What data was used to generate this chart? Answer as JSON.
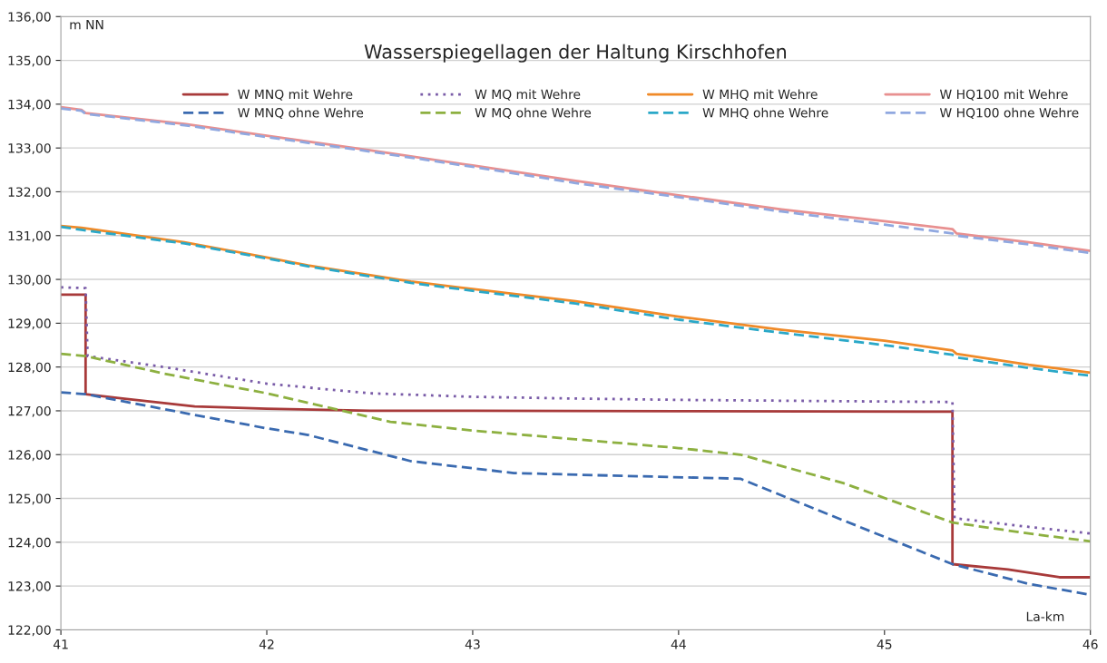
{
  "chart_data": {
    "type": "line",
    "title": "Wasserspiegellagen der Haltung Kirschhofen",
    "xlabel": "La-km",
    "ylabel": "m NN",
    "xlim": [
      41,
      46
    ],
    "xticks": [
      41,
      42,
      43,
      44,
      45,
      46
    ],
    "ylim": [
      122,
      136
    ],
    "yticks": [
      {
        "value": 122,
        "label": "122,00"
      },
      {
        "value": 123,
        "label": "123,00"
      },
      {
        "value": 124,
        "label": "124,00"
      },
      {
        "value": 125,
        "label": "125,00"
      },
      {
        "value": 126,
        "label": "126,00"
      },
      {
        "value": 127,
        "label": "127,00"
      },
      {
        "value": 128,
        "label": "128,00"
      },
      {
        "value": 129,
        "label": "129,00"
      },
      {
        "value": 130,
        "label": "130,00"
      },
      {
        "value": 131,
        "label": "131,00"
      },
      {
        "value": 132,
        "label": "132,00"
      },
      {
        "value": 133,
        "label": "133,00"
      },
      {
        "value": 134,
        "label": "134,00"
      },
      {
        "value": 135,
        "label": "135,00"
      },
      {
        "value": 136,
        "label": "136,00"
      }
    ],
    "grid": "y",
    "legend": "top right",
    "marker": "none",
    "series": [
      {
        "name": "W MNQ mit Wehre",
        "color": "#a83a3a",
        "line_style": "solid",
        "x": [
          41,
          41.12,
          41.12,
          41.3,
          41.65,
          42.0,
          42.5,
          43,
          44,
          45.33,
          45.33,
          45.6,
          45.85,
          46
        ],
        "values": [
          129.65,
          129.65,
          127.38,
          127.28,
          127.1,
          127.05,
          127.0,
          127.0,
          126.99,
          126.98,
          123.5,
          123.38,
          123.2,
          123.2
        ]
      },
      {
        "name": "W MNQ ohne Wehre",
        "color": "#3a6ab0",
        "line_style": "dashed",
        "x": [
          41,
          41.12,
          41.6,
          42.0,
          42.2,
          42.7,
          43.2,
          43.6,
          44.3,
          44.8,
          45.33,
          45.7,
          46
        ],
        "values": [
          127.42,
          127.38,
          126.95,
          126.6,
          126.45,
          125.85,
          125.58,
          125.53,
          125.45,
          124.5,
          123.5,
          123.05,
          122.8
        ]
      },
      {
        "name": "W MQ mit Wehre",
        "color": "#7a5ca8",
        "line_style": "dotted",
        "x": [
          41,
          41.12,
          41.13,
          41.5,
          42,
          42.5,
          43,
          43.5,
          44,
          45.33,
          45.34,
          45.7,
          46
        ],
        "values": [
          129.82,
          129.8,
          128.25,
          128.0,
          127.62,
          127.4,
          127.32,
          127.28,
          127.25,
          127.2,
          124.55,
          124.35,
          124.2
        ]
      },
      {
        "name": "W MQ ohne Wehre",
        "color": "#8db040",
        "line_style": "dashed",
        "x": [
          41,
          41.12,
          41.5,
          42,
          42.6,
          43,
          43.5,
          44.0,
          44.3,
          44.8,
          45.33,
          45.7,
          46
        ],
        "values": [
          128.3,
          128.25,
          127.85,
          127.4,
          126.75,
          126.55,
          126.35,
          126.15,
          126.0,
          125.35,
          124.45,
          124.2,
          124.02
        ]
      },
      {
        "name": "W MHQ mit Wehre",
        "color": "#f08a28",
        "line_style": "solid",
        "x": [
          41,
          41.1,
          41.6,
          42.0,
          42.2,
          42.7,
          43,
          43.5,
          44,
          44.5,
          45.0,
          45.33,
          45.35,
          45.7,
          46
        ],
        "values": [
          131.22,
          131.18,
          130.85,
          130.5,
          130.32,
          129.95,
          129.78,
          129.5,
          129.15,
          128.85,
          128.6,
          128.38,
          128.3,
          128.05,
          127.87
        ]
      },
      {
        "name": "W MHQ ohne Wehre",
        "color": "#2aa8c8",
        "line_style": "dashed",
        "x": [
          41,
          41.1,
          41.6,
          42,
          42.2,
          42.7,
          43,
          43.5,
          44,
          44.5,
          45,
          45.33,
          45.35,
          45.7,
          46
        ],
        "values": [
          131.2,
          131.13,
          130.82,
          130.48,
          130.3,
          129.92,
          129.74,
          129.45,
          129.08,
          128.78,
          128.5,
          128.28,
          128.22,
          127.98,
          127.8
        ]
      },
      {
        "name": "W HQ100 mit Wehre",
        "color": "#e89090",
        "line_style": "solid",
        "x": [
          41,
          41.1,
          41.12,
          41.6,
          42,
          42.5,
          43,
          43.5,
          44,
          44.5,
          45,
          45.33,
          45.35,
          45.7,
          46
        ],
        "values": [
          133.93,
          133.87,
          133.8,
          133.55,
          133.28,
          132.95,
          132.6,
          132.25,
          131.92,
          131.6,
          131.33,
          131.15,
          131.05,
          130.85,
          130.65
        ]
      },
      {
        "name": "W HQ100 ohne Wehre",
        "color": "#90a8e0",
        "line_style": "dashed",
        "x": [
          41,
          41.1,
          41.12,
          41.6,
          42,
          42.5,
          43,
          43.5,
          44,
          44.5,
          45,
          45.33,
          45.35,
          45.7,
          46
        ],
        "values": [
          133.9,
          133.85,
          133.78,
          133.52,
          133.25,
          132.92,
          132.57,
          132.2,
          131.88,
          131.55,
          131.25,
          131.05,
          131.0,
          130.8,
          130.6
        ]
      }
    ]
  }
}
